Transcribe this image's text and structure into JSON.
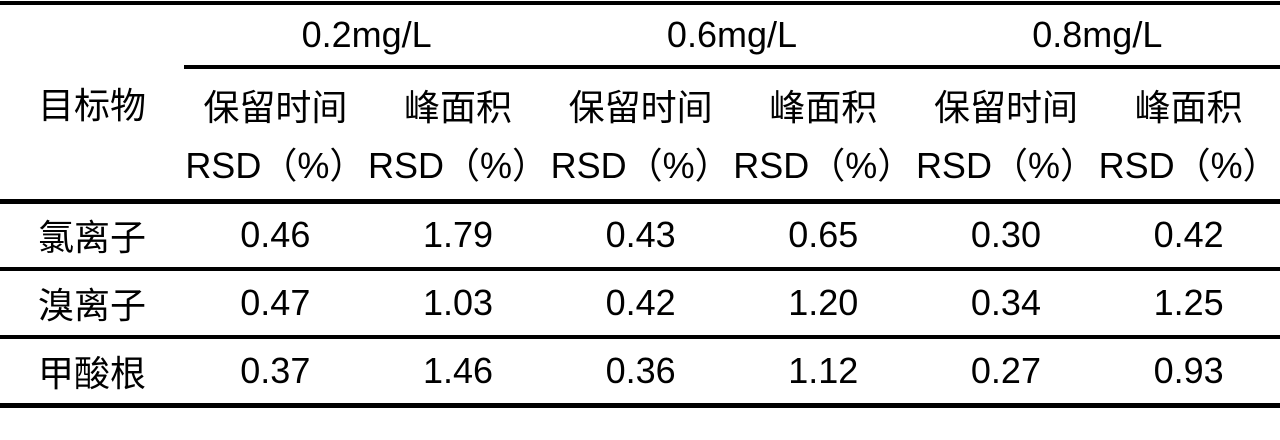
{
  "table": {
    "corner_header": "目标物",
    "concentration_groups": [
      {
        "label": "0.2mg/L"
      },
      {
        "label": "0.6mg/L"
      },
      {
        "label": "0.8mg/L"
      }
    ],
    "col_headers": {
      "retention_line1": "保留时间",
      "peak_line1": "峰面积",
      "rsd_line2": "RSD（%）"
    },
    "rows": [
      {
        "analyte": "氯离子",
        "values": [
          "0.46",
          "1.79",
          "0.43",
          "0.65",
          "0.30",
          "0.42"
        ]
      },
      {
        "analyte": "溴离子",
        "values": [
          "0.47",
          "1.03",
          "0.42",
          "1.20",
          "0.34",
          "1.25"
        ]
      },
      {
        "analyte": "甲酸根",
        "values": [
          "0.37",
          "1.46",
          "0.36",
          "1.12",
          "0.27",
          "0.93"
        ]
      }
    ]
  },
  "colors": {
    "background": "#ffffff",
    "text": "#000000",
    "rule": "#000000"
  },
  "chart_data": {
    "type": "table",
    "title": "",
    "row_header": "目标物",
    "group_headers": [
      "0.2mg/L",
      "0.6mg/L",
      "0.8mg/L"
    ],
    "columns": [
      "目标物",
      "0.2mg/L 保留时间 RSD（%）",
      "0.2mg/L 峰面积 RSD（%）",
      "0.6mg/L 保留时间 RSD（%）",
      "0.6mg/L 峰面积 RSD（%）",
      "0.8mg/L 保留时间 RSD（%）",
      "0.8mg/L 峰面积 RSD（%）"
    ],
    "rows": [
      [
        "氯离子",
        0.46,
        1.79,
        0.43,
        0.65,
        0.3,
        0.42
      ],
      [
        "溴离子",
        0.47,
        1.03,
        0.42,
        1.2,
        0.34,
        1.25
      ],
      [
        "甲酸根",
        0.37,
        1.46,
        0.36,
        1.12,
        0.27,
        0.93
      ]
    ]
  }
}
